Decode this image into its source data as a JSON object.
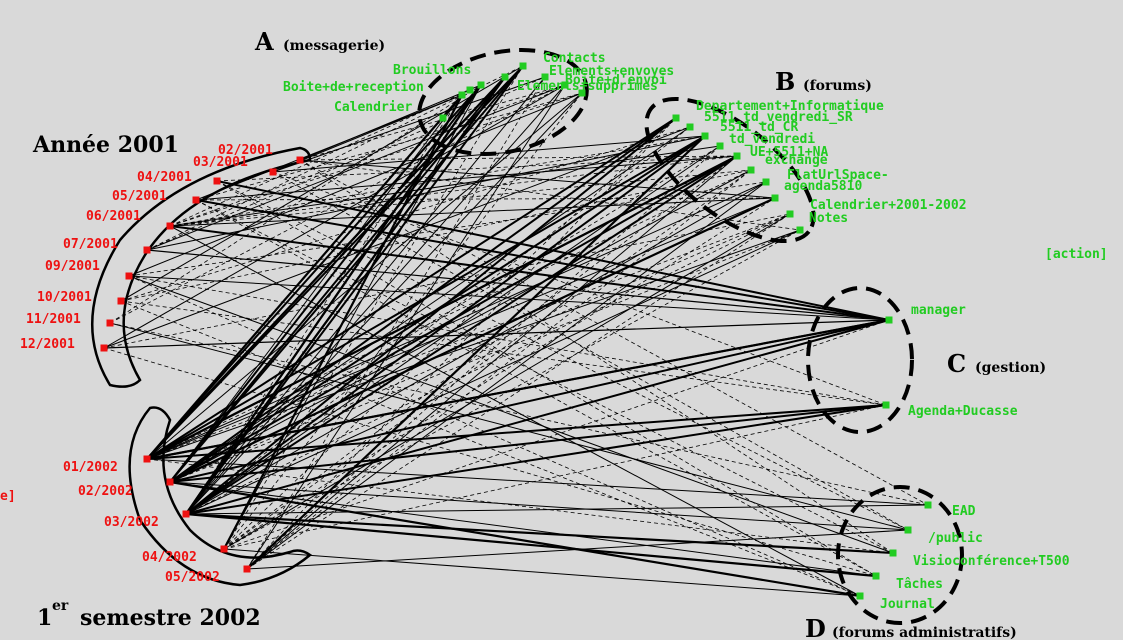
{
  "colors": {
    "background": "#d9d9d9",
    "category_node": "#22cc22",
    "month_node": "#ee1111",
    "edge": "#000000"
  },
  "annotations": {
    "group_a": {
      "letter": "A",
      "name": "(messagerie)"
    },
    "group_b": {
      "letter": "B",
      "name": "(forums)"
    },
    "group_c": {
      "letter": "C",
      "name": "(gestion)"
    },
    "group_d": {
      "letter": "D",
      "name": "(forums administratifs)"
    },
    "year_2001": "Année 2001",
    "sem_2002_sup": "er",
    "sem_2002_prefix": "1",
    "sem_2002_suffix": "semestre 2002"
  },
  "edge_labels": {
    "action": "[action]",
    "left_partial": "e]"
  },
  "groups": {
    "messagerie": [
      "Contacts",
      "Elements+envoyes",
      "Boite+d'envoi",
      "Elements+supprimes",
      "Brouillons",
      "Boite+de+reception",
      "Calendrier"
    ],
    "forums": [
      "Departement+Informatique",
      "5511_td_vendredi_SR",
      "5511_td_CR",
      "td_vendredi",
      "UE+5511+NA",
      "exchange",
      "FlatUrlSpace-",
      "agenda5810",
      "Calendrier+2001-2002",
      "Notes"
    ],
    "gestion": [
      "manager",
      "Agenda+Ducasse"
    ],
    "forums_administratifs": [
      "EAD",
      "/public",
      "Visioconférence+T500",
      "Tâches",
      "Journal"
    ]
  },
  "months_2001": [
    "02/2001",
    "03/2001",
    "04/2001",
    "05/2001",
    "06/2001",
    "07/2001",
    "09/2001",
    "10/2001",
    "11/2001",
    "12/2001"
  ],
  "months_2002": [
    "01/2002",
    "02/2002",
    "03/2002",
    "04/2002",
    "05/2002"
  ]
}
